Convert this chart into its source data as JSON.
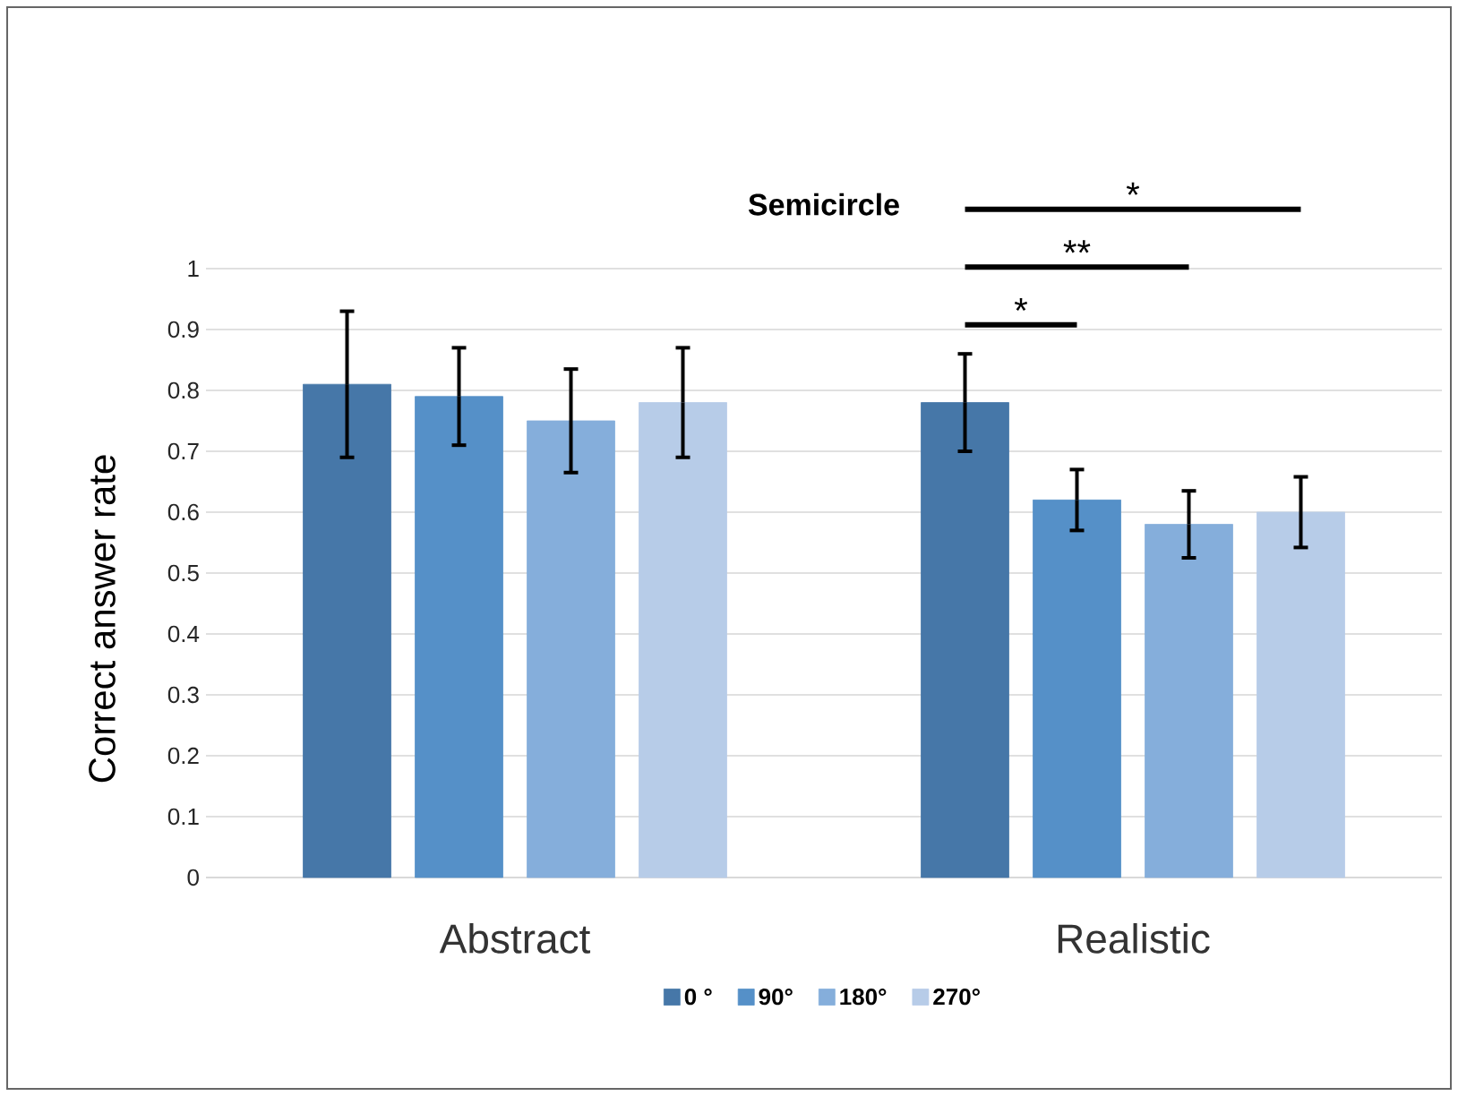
{
  "chart_data": {
    "type": "bar",
    "title": "Semicircle",
    "ylabel": "Correct answer rate",
    "categories": [
      "Abstract",
      "Realistic"
    ],
    "series": [
      {
        "name": "0 °",
        "color": "#4677a8",
        "values": [
          0.81,
          0.78
        ],
        "errors": [
          0.12,
          0.08
        ]
      },
      {
        "name": "90°",
        "color": "#5590c8",
        "values": [
          0.79,
          0.62
        ],
        "errors": [
          0.08,
          0.05
        ]
      },
      {
        "name": "180°",
        "color": "#85aedb",
        "values": [
          0.75,
          0.58
        ],
        "errors": [
          0.085,
          0.055
        ]
      },
      {
        "name": "270°",
        "color": "#b7cce8",
        "values": [
          0.78,
          0.6
        ],
        "errors": [
          0.09,
          0.058
        ]
      }
    ],
    "ylim": [
      0,
      1
    ],
    "yticks": [
      0,
      0.1,
      0.2,
      0.3,
      0.4,
      0.5,
      0.6,
      0.7,
      0.8,
      0.9,
      1
    ],
    "grid": "y",
    "legend": "bottom",
    "annotations": [
      "*",
      "**",
      "*"
    ]
  }
}
